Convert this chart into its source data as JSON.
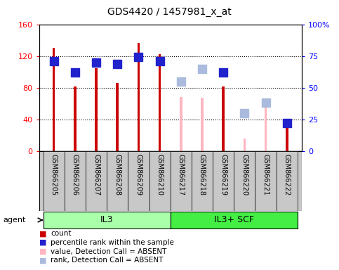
{
  "title": "GDS4420 / 1457981_x_at",
  "samples": [
    "GSM866205",
    "GSM866206",
    "GSM866207",
    "GSM866208",
    "GSM866209",
    "GSM866210",
    "GSM866217",
    "GSM866218",
    "GSM866219",
    "GSM866220",
    "GSM866221",
    "GSM866222"
  ],
  "groups": [
    {
      "label": "IL3",
      "indices": [
        0,
        1,
        2,
        3,
        4,
        5
      ],
      "color": "#AAFFAA"
    },
    {
      "label": "IL3+ SCF",
      "indices": [
        6,
        7,
        8,
        9,
        10,
        11
      ],
      "color": "#44EE44"
    }
  ],
  "count_values": [
    130,
    82,
    105,
    86,
    137,
    122,
    null,
    null,
    82,
    null,
    null,
    35
  ],
  "rank_values": [
    71,
    62,
    70,
    69,
    74,
    71,
    null,
    null,
    62,
    null,
    null,
    null
  ],
  "absent_count": [
    null,
    null,
    null,
    null,
    null,
    null,
    68,
    67,
    null,
    16,
    60,
    null
  ],
  "absent_rank": [
    null,
    null,
    null,
    null,
    null,
    null,
    55,
    65,
    null,
    30,
    38,
    null
  ],
  "gsm866222_count": 35,
  "gsm866222_rank": 22,
  "left_ylim": [
    0,
    160
  ],
  "right_ylim": [
    0,
    100
  ],
  "left_yticks": [
    0,
    40,
    80,
    120,
    160
  ],
  "right_yticks": [
    0,
    25,
    50,
    75,
    100
  ],
  "right_yticklabels": [
    "0",
    "25",
    "50",
    "75",
    "100%"
  ],
  "bar_width": 0.12,
  "rank_marker_size": 60,
  "count_color": "#CC0000",
  "rank_color": "#2222CC",
  "absent_count_color": "#FFB6C1",
  "absent_rank_color": "#AABBDD",
  "xtick_bg": "#C8C8C8",
  "group_il3_color": "#AAFFAA",
  "group_scf_color": "#44EE44",
  "agent_label": "agent",
  "legend_items": [
    {
      "label": "count",
      "color": "#CC0000"
    },
    {
      "label": "percentile rank within the sample",
      "color": "#2222CC"
    },
    {
      "label": "value, Detection Call = ABSENT",
      "color": "#FFB6C1"
    },
    {
      "label": "rank, Detection Call = ABSENT",
      "color": "#AABBDD"
    }
  ]
}
